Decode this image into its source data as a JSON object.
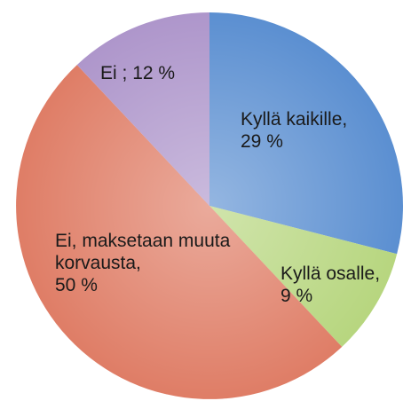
{
  "chart_data": {
    "type": "pie",
    "categories": [
      "Kyllä kaikille,",
      "Kyllä osalle,",
      "Ei, maksetaan muuta korvausta,",
      "Ei ;"
    ],
    "values": [
      29,
      9,
      50,
      12
    ],
    "value_labels": [
      "29 %",
      "9 %",
      "50 %",
      "12 %"
    ],
    "colors": [
      "#5b8fd1",
      "#b7d67f",
      "#df7d66",
      "#ae96cb"
    ]
  }
}
